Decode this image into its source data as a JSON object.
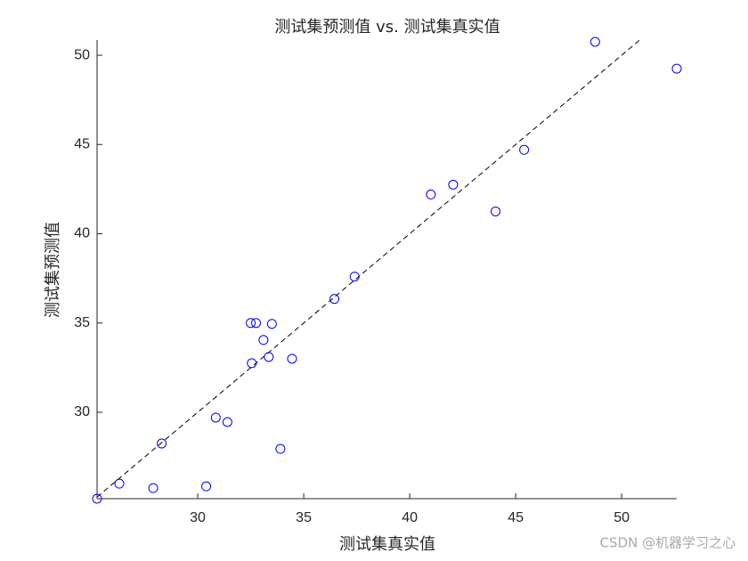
{
  "chart_data": {
    "type": "scatter",
    "title": "测试集预测值 vs. 测试集真实值",
    "x_label": "测试集真实值",
    "y_label": "测试集预测值",
    "x": [
      25.25,
      26.3,
      27.9,
      28.3,
      30.4,
      30.85,
      31.4,
      32.5,
      32.75,
      32.55,
      33.1,
      33.35,
      33.5,
      33.9,
      34.45,
      36.45,
      37.4,
      41.0,
      42.05,
      44.05,
      45.4,
      48.75,
      52.6
    ],
    "values": [
      25.16,
      26.0,
      25.75,
      28.25,
      25.85,
      29.7,
      29.45,
      35.0,
      35.0,
      32.75,
      34.05,
      33.1,
      34.95,
      27.95,
      33.0,
      36.35,
      37.6,
      42.2,
      42.75,
      41.25,
      44.7,
      50.75,
      49.25
    ],
    "color": "#0000ff",
    "xlim": [
      25.25,
      52.6
    ],
    "ylim": [
      25.16,
      50.85
    ],
    "xticks": [
      30,
      35,
      40,
      45,
      50
    ],
    "yticks": [
      30,
      35,
      40,
      45,
      50
    ]
  },
  "watermark": "CSDN @机器学习之心"
}
